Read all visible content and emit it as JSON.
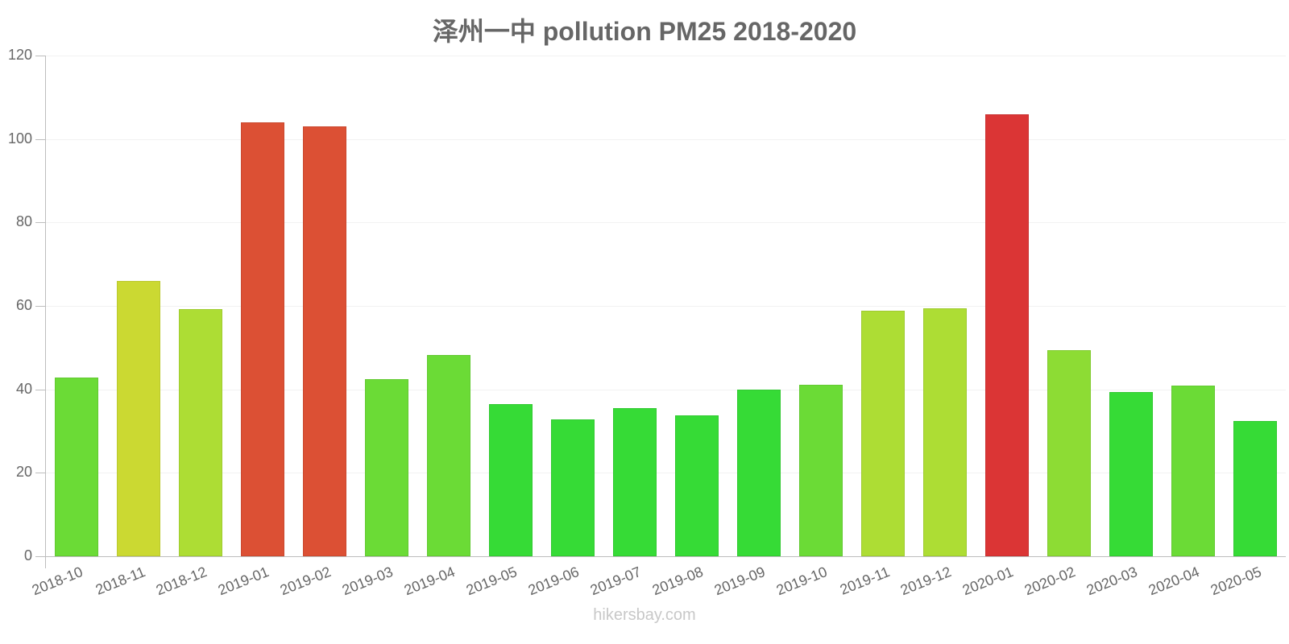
{
  "chart_data": {
    "type": "bar",
    "title": "泽州一中 pollution PM25 2018-2020",
    "xlabel": "",
    "ylabel": "",
    "ylim": [
      0,
      120
    ],
    "yticks": [
      0,
      20,
      40,
      60,
      80,
      100,
      120
    ],
    "grid": true,
    "legend": null,
    "categories": [
      "2018-10",
      "2018-11",
      "2018-12",
      "2019-01",
      "2019-02",
      "2019-03",
      "2019-04",
      "2019-05",
      "2019-06",
      "2019-07",
      "2019-08",
      "2019-09",
      "2019-10",
      "2019-11",
      "2019-12",
      "2020-01",
      "2020-02",
      "2020-03",
      "2020-04",
      "2020-05"
    ],
    "values": [
      42.8,
      66,
      59.2,
      104,
      103,
      42.4,
      48.2,
      36.5,
      32.8,
      35.5,
      33.8,
      40,
      41.1,
      58.8,
      59.4,
      105.9,
      49.4,
      39.4,
      40.9,
      32.4
    ],
    "colors": [
      "#6bdb36",
      "#cbd932",
      "#addd34",
      "#dc5034",
      "#dc5034",
      "#6bdb36",
      "#6bdb36",
      "#36db36",
      "#36db36",
      "#36db36",
      "#36db36",
      "#36db36",
      "#6bdb36",
      "#addd34",
      "#addd34",
      "#db3535",
      "#8ddc34",
      "#36db36",
      "#6bdb36",
      "#36db36"
    ]
  },
  "watermark": "hikersbay.com"
}
